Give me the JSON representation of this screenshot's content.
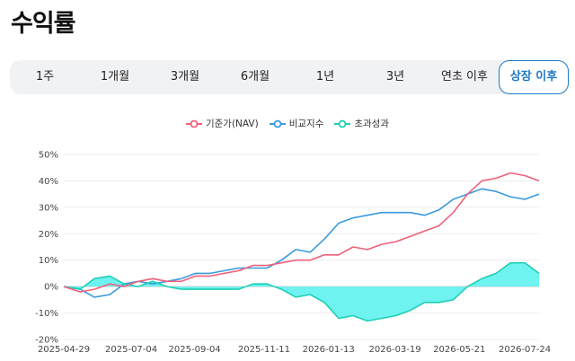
{
  "page": {
    "title": "수익률"
  },
  "tabs": [
    {
      "label": "1주",
      "active": false
    },
    {
      "label": "1개월",
      "active": false
    },
    {
      "label": "3개월",
      "active": false
    },
    {
      "label": "6개월",
      "active": false
    },
    {
      "label": "1년",
      "active": false
    },
    {
      "label": "3년",
      "active": false
    },
    {
      "label": "연초 이후",
      "active": false
    },
    {
      "label": "상장 이후",
      "active": true
    }
  ],
  "colors": {
    "nav": "#f0607a",
    "benchmark": "#3a9ae0",
    "excess": "#1ecfb4",
    "excess_fill": "#5ff2ee",
    "accent": "#1e78c8"
  },
  "chart_data": {
    "type": "line",
    "legend": [
      "기준가(NAV)",
      "비교지수",
      "초과성과"
    ],
    "legend_position": "top-center",
    "grid": true,
    "x_tick_labels": [
      "2025-04-29",
      "2025-07-04",
      "2025-09-04",
      "2025-11-11",
      "2026-01-13",
      "2026-03-19",
      "2026-05-21",
      "2026-07-24"
    ],
    "y_tick_labels": [
      "50%",
      "40%",
      "30%",
      "20%",
      "10%",
      "0%",
      "-10%",
      "-20%"
    ],
    "ylim": [
      -20,
      50
    ],
    "x": [
      "2025-04-29",
      "2025-05-15",
      "2025-05-29",
      "2025-06-13",
      "2025-06-27",
      "2025-07-11",
      "2025-07-25",
      "2025-08-08",
      "2025-08-22",
      "2025-09-05",
      "2025-09-19",
      "2025-10-03",
      "2025-10-17",
      "2025-10-31",
      "2025-11-14",
      "2025-11-28",
      "2025-12-12",
      "2025-12-26",
      "2026-01-09",
      "2026-01-23",
      "2026-02-06",
      "2026-02-20",
      "2026-03-06",
      "2026-03-20",
      "2026-04-03",
      "2026-04-17",
      "2026-05-01",
      "2026-05-15",
      "2026-05-29",
      "2026-06-12",
      "2026-06-26",
      "2026-07-10",
      "2026-07-24",
      "2026-08-07"
    ],
    "series": [
      {
        "name": "기준가(NAV)",
        "values": [
          0,
          -2,
          -1,
          1,
          0,
          2,
          3,
          2,
          2,
          4,
          4,
          5,
          6,
          8,
          8,
          9,
          10,
          10,
          12,
          12,
          15,
          14,
          16,
          17,
          19,
          21,
          23,
          28,
          35,
          40,
          41,
          43,
          42,
          40
        ]
      },
      {
        "name": "비교지수",
        "values": [
          0,
          -1,
          -4,
          -3,
          1,
          2,
          1,
          2,
          3,
          5,
          5,
          6,
          7,
          7,
          7,
          10,
          14,
          13,
          18,
          24,
          26,
          27,
          28,
          28,
          28,
          27,
          29,
          33,
          35,
          37,
          36,
          34,
          33,
          35
        ]
      },
      {
        "name": "초과성과",
        "values": [
          0,
          -1,
          3,
          4,
          1,
          0,
          2,
          0,
          -1,
          -1,
          -1,
          -1,
          -1,
          1,
          1,
          -1,
          -4,
          -3,
          -6,
          -12,
          -11,
          -13,
          -12,
          -11,
          -9,
          -6,
          -6,
          -5,
          0,
          3,
          5,
          9,
          9,
          5
        ]
      }
    ]
  }
}
